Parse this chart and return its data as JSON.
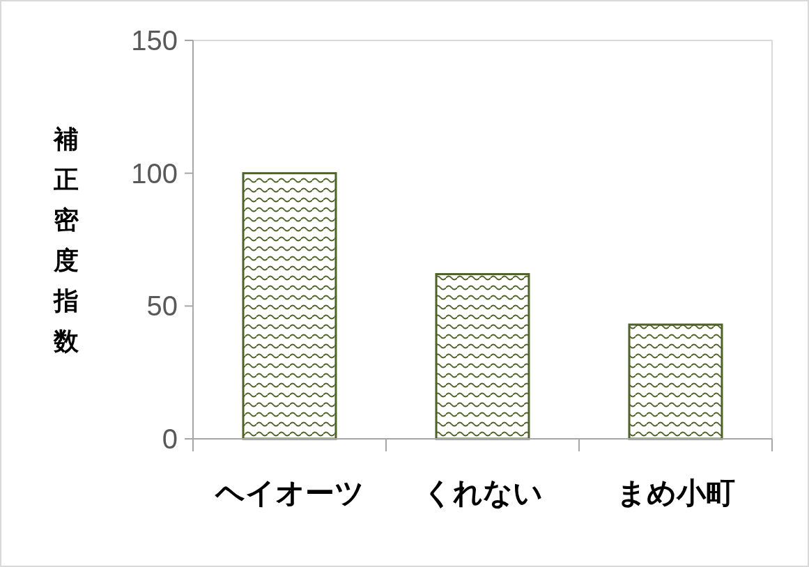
{
  "chart_data": {
    "type": "bar",
    "ylabel": "補正密度指数",
    "categories": [
      "ヘイオーツ",
      "くれない",
      "まめ小町"
    ],
    "values": [
      100,
      62,
      43
    ],
    "colors": [
      "#4f6228",
      "#4f6228",
      "#4f6228"
    ],
    "ylim": [
      0,
      150
    ],
    "yticks": [
      0,
      50,
      100,
      150
    ],
    "grid": false
  }
}
